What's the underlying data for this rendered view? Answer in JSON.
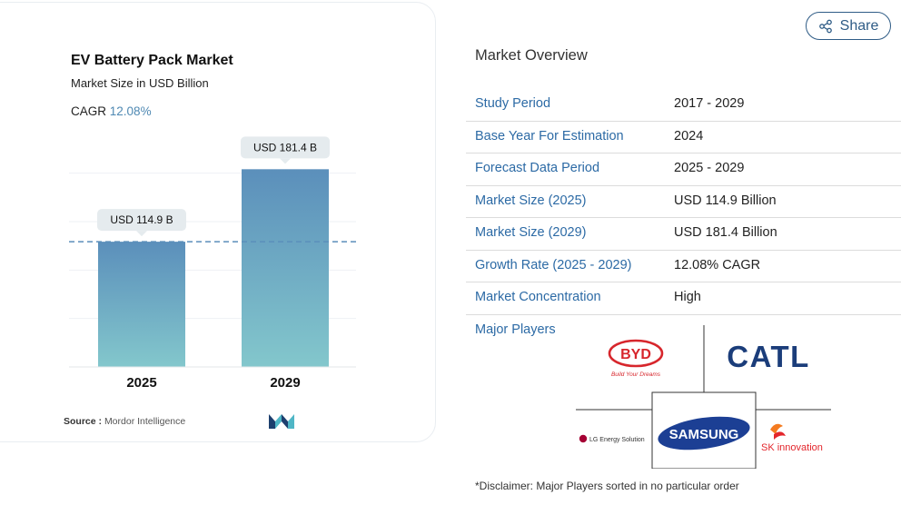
{
  "chart_card": {
    "title": "EV Battery Pack Market",
    "subtitle": "Market Size in USD Billion",
    "cagr_label": "CAGR",
    "cagr_value": "12.08%",
    "source_label": "Source :",
    "source_value": "Mordor Intelligence"
  },
  "chart_data": {
    "type": "bar",
    "title": "EV Battery Pack Market",
    "subtitle": "Market Size in USD Billion",
    "categories": [
      "2025",
      "2029"
    ],
    "values": [
      114.9,
      181.4
    ],
    "data_labels": [
      "USD 114.9 B",
      "USD 181.4 B"
    ],
    "reference_line": 114.9,
    "ylim": [
      0,
      200
    ],
    "grid": true,
    "colors": {
      "bar_top": "#5b8fbb",
      "bar_bottom": "#83c7cc",
      "reference_line": "#5b8fbb",
      "label_bg": "#e5ebee"
    }
  },
  "header": {
    "share_label": "Share",
    "share_icon": "share-icon"
  },
  "overview": {
    "title": "Market Overview",
    "rows": [
      {
        "label": "Study Period",
        "value": "2017 - 2029"
      },
      {
        "label": "Base Year For Estimation",
        "value": "2024"
      },
      {
        "label": "Forecast Data Period",
        "value": "2025 - 2029"
      },
      {
        "label": "Market Size (2025)",
        "value": "USD 114.9 Billion"
      },
      {
        "label": "Market Size (2029)",
        "value": "USD 181.4 Billion"
      },
      {
        "label": "Growth Rate (2025 - 2029)",
        "value": "12.08% CAGR"
      },
      {
        "label": "Market Concentration",
        "value": "High"
      }
    ],
    "players_label": "Major Players",
    "players": [
      {
        "name": "BYD",
        "tagline": "Build Your Dreams"
      },
      {
        "name": "CATL"
      },
      {
        "name": "LG Energy Solution"
      },
      {
        "name": "SAMSUNG"
      },
      {
        "name": "SK innovation"
      }
    ],
    "disclaimer": "*Disclaimer: Major Players sorted in no particular order"
  },
  "colors": {
    "accent": "#2c6aa5",
    "share_border": "#2f5c86"
  }
}
